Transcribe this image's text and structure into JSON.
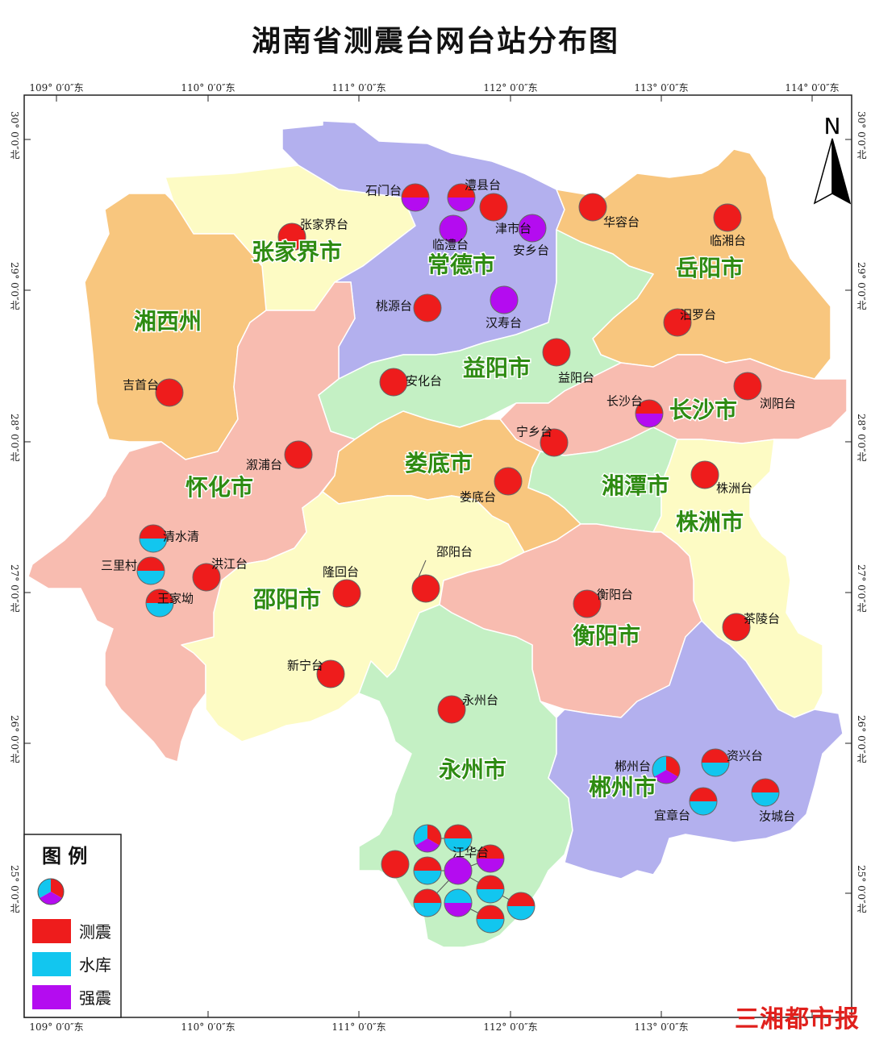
{
  "title": "湖南省测震台网台站分布图",
  "lng_labels": [
    "109° 0′0″东",
    "110° 0′0″东",
    "111° 0′0″东",
    "112° 0′0″东",
    "113° 0′0″东",
    "114° 0′0″东"
  ],
  "lat_labels": [
    "30° 0′0″北",
    "29° 0′0″北",
    "28° 0′0″北",
    "27° 0′0″北",
    "26° 0′0″北",
    "25° 0′0″北"
  ],
  "north_label": "N",
  "colors": {
    "seismic": "#ee1c1c",
    "reservoir": "#12c6ef",
    "strong_motion": "#b40cf0",
    "region_label": "#2e8b12"
  },
  "regions": [
    {
      "name": "张家界市",
      "color": "#fdfbc4"
    },
    {
      "name": "常德市",
      "color": "#b3b0ee"
    },
    {
      "name": "湘西州",
      "color": "#f8c67e"
    },
    {
      "name": "岳阳市",
      "color": "#f8c67e"
    },
    {
      "name": "益阳市",
      "color": "#c4f0c4"
    },
    {
      "name": "长沙市",
      "color": "#f8bcb0"
    },
    {
      "name": "怀化市",
      "color": "#f8bcb0"
    },
    {
      "name": "娄底市",
      "color": "#f8c67e"
    },
    {
      "name": "湘潭市",
      "color": "#c4f0c4"
    },
    {
      "name": "株洲市",
      "color": "#fdfbc4"
    },
    {
      "name": "邵阳市",
      "color": "#fdfbc4"
    },
    {
      "name": "衡阳市",
      "color": "#f8bcb0"
    },
    {
      "name": "永州市",
      "color": "#c4f0c4"
    },
    {
      "name": "郴州市",
      "color": "#b3b0ee"
    }
  ],
  "stations": [
    {
      "name": "石门台",
      "type": "half-rm"
    },
    {
      "name": "澧县台",
      "type": "half-rm"
    },
    {
      "name": "津市台",
      "type": "r"
    },
    {
      "name": "临澧台",
      "type": "m"
    },
    {
      "name": "安乡台",
      "type": "m"
    },
    {
      "name": "张家界台",
      "type": "r"
    },
    {
      "name": "华容台",
      "type": "r"
    },
    {
      "name": "临湘台",
      "type": "r"
    },
    {
      "name": "桃源台",
      "type": "r"
    },
    {
      "name": "汉寿台",
      "type": "m"
    },
    {
      "name": "汨罗台",
      "type": "r"
    },
    {
      "name": "益阳台",
      "type": "r"
    },
    {
      "name": "安化台",
      "type": "r"
    },
    {
      "name": "吉首台",
      "type": "r"
    },
    {
      "name": "浏阳台",
      "type": "r"
    },
    {
      "name": "长沙台",
      "type": "half-rm"
    },
    {
      "name": "宁乡台",
      "type": "r"
    },
    {
      "name": "溆浦台",
      "type": "r"
    },
    {
      "name": "娄底台",
      "type": "r"
    },
    {
      "name": "株洲台",
      "type": "r"
    },
    {
      "name": "清水清",
      "type": "half-rc"
    },
    {
      "name": "三里村",
      "type": "half-rc"
    },
    {
      "name": "洪江台",
      "type": "r"
    },
    {
      "name": "王家坳",
      "type": "half-rc"
    },
    {
      "name": "邵阳台",
      "type": "r"
    },
    {
      "name": "隆回台",
      "type": "r"
    },
    {
      "name": "衡阳台",
      "type": "r"
    },
    {
      "name": "茶陵台",
      "type": "r"
    },
    {
      "name": "新宁台",
      "type": "r"
    },
    {
      "name": "永州台",
      "type": "r"
    },
    {
      "name": "郴州台",
      "type": "tri"
    },
    {
      "name": "资兴台",
      "type": "half-rc"
    },
    {
      "name": "宜章台",
      "type": "half-rc"
    },
    {
      "name": "汝城台",
      "type": "half-rc"
    },
    {
      "name": "江华台",
      "type": "half-rc"
    }
  ],
  "legend": {
    "title": "图 例",
    "items": [
      {
        "label": "测震",
        "color": "#ee1c1c"
      },
      {
        "label": "水库",
        "color": "#12c6ef"
      },
      {
        "label": "强震",
        "color": "#b40cf0"
      }
    ]
  },
  "watermark": "三湘都市报"
}
